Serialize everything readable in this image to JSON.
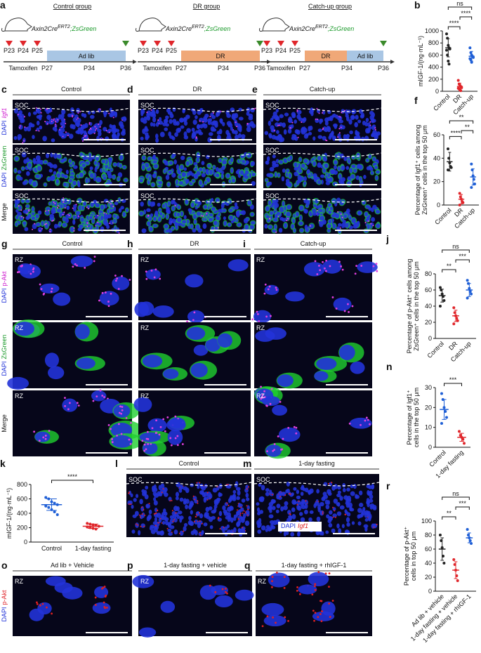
{
  "panel_letters": [
    "a",
    "b",
    "c",
    "d",
    "e",
    "f",
    "g",
    "h",
    "i",
    "j",
    "k",
    "l",
    "m",
    "n",
    "o",
    "p",
    "q",
    "r"
  ],
  "schematic": {
    "genotype": [
      "Axin2Cre",
      "ERT2",
      ";ZsGreen"
    ],
    "days_top": [
      "P23",
      "P24",
      "P25"
    ],
    "tamoxifen": "Tamoxifen",
    "days_bottom": [
      "P27",
      "P34",
      "P36"
    ],
    "groups": [
      {
        "title": "Control group",
        "segments": [
          {
            "label": "Ad lib",
            "color": "#a9c6e4"
          }
        ]
      },
      {
        "title": "DR group",
        "segments": [
          {
            "label": "DR",
            "color": "#f0a878"
          }
        ]
      },
      {
        "title": "Catch-up group",
        "segments": [
          {
            "label": "DR",
            "color": "#f0a878"
          },
          {
            "label": "Ad lib",
            "color": "#a9c6e4"
          }
        ]
      }
    ]
  },
  "images": [
    {
      "titles": [
        "Control",
        "DR",
        "Catch-up"
      ],
      "region": "SOC",
      "rows": [
        [
          "DAPI",
          "Igf1"
        ],
        [
          "DAPI",
          "ZsGreen"
        ],
        [
          "Merge"
        ]
      ]
    },
    {
      "titles": [
        "Control",
        "DR",
        "Catch-up"
      ],
      "region": "RZ",
      "rows": [
        [
          "DAPI",
          "p-Akt"
        ],
        [
          "DAPI",
          "ZsGreen"
        ],
        [
          "Merge"
        ]
      ]
    },
    {
      "titles": [
        "Control",
        "1-day fasting"
      ],
      "region": "SOC",
      "legend": [
        "DAPI",
        "Igf1"
      ],
      "rows": []
    },
    {
      "titles": [
        "Ad lib + Vehicle",
        "1-day fasting + vehicle",
        "1-day fasting + rhIGF-1"
      ],
      "region": "RZ",
      "rows": [
        [
          "DAPI",
          "p-Akt"
        ]
      ]
    }
  ],
  "charts": {
    "b": {
      "type": "scatter",
      "ylabel": [
        "mIGF-1/(ng·mL⁻¹)"
      ],
      "categories": [
        "Control",
        "DR",
        "Catch-up"
      ],
      "colors": [
        "#222222",
        "#e0262b",
        "#1f5fd6"
      ],
      "ylim": [
        0,
        1000
      ],
      "yticks": [
        0,
        200,
        400,
        600,
        800,
        1000
      ],
      "groups": [
        {
          "points": [
            950,
            880,
            760,
            720,
            700,
            680,
            600,
            500,
            450
          ],
          "mean": 720,
          "sd": 150
        },
        {
          "points": [
            180,
            120,
            100,
            80,
            60,
            50,
            40,
            20,
            10
          ],
          "mean": 80,
          "sd": 55
        },
        {
          "points": [
            720,
            640,
            600,
            580,
            560,
            540,
            520,
            480
          ],
          "mean": 580,
          "sd": 80
        }
      ],
      "significance": [
        "ns",
        "****",
        "****"
      ]
    },
    "f": {
      "type": "scatter",
      "ylabel": [
        "Percentage of Igf1⁺ cells among",
        "ZsGreen⁺ cells in the top 50 μm"
      ],
      "categories": [
        "Control",
        "DR",
        "Catch-up"
      ],
      "colors": [
        "#222222",
        "#e0262b",
        "#1f5fd6"
      ],
      "ylim": [
        0,
        60
      ],
      "yticks": [
        0,
        20,
        40,
        60
      ],
      "groups": [
        {
          "points": [
            48,
            40,
            36,
            33,
            32,
            30
          ],
          "mean": 37,
          "sd": 8
        },
        {
          "points": [
            10,
            7,
            5,
            3,
            2,
            0
          ],
          "mean": 5,
          "sd": 4
        },
        {
          "points": [
            35,
            30,
            25,
            22,
            18,
            15
          ],
          "mean": 24,
          "sd": 7
        }
      ],
      "significance": [
        "**",
        "****",
        "**"
      ]
    },
    "j": {
      "type": "scatter",
      "ylabel": [
        "Percentage of p-Akt⁺ cells among",
        "ZsGreen⁺ cells in the top 50 μm"
      ],
      "categories": [
        "Control",
        "DR",
        "Catch-up"
      ],
      "colors": [
        "#222222",
        "#e0262b",
        "#1f5fd6"
      ],
      "ylim": [
        0,
        80
      ],
      "yticks": [
        0,
        20,
        40,
        60,
        80
      ],
      "groups": [
        {
          "points": [
            63,
            60,
            55,
            52,
            47,
            40
          ],
          "mean": 53,
          "sd": 8
        },
        {
          "points": [
            38,
            32,
            28,
            25,
            22,
            18
          ],
          "mean": 28,
          "sd": 7
        },
        {
          "points": [
            72,
            68,
            62,
            58,
            55,
            50
          ],
          "mean": 60,
          "sd": 8
        }
      ],
      "significance": [
        "ns",
        "**",
        "***"
      ]
    },
    "n": {
      "type": "scatter",
      "ylabel": [
        "Percentage of Igf1⁺",
        "cells in the top 50 μm"
      ],
      "categories": [
        "Control",
        "1-day fasting"
      ],
      "colors": [
        "#1f5fd6",
        "#e0262b"
      ],
      "ylim": [
        0,
        30
      ],
      "yticks": [
        0,
        10,
        20,
        30
      ],
      "groups": [
        {
          "points": [
            27,
            24,
            20,
            18,
            15,
            12
          ],
          "mean": 19,
          "sd": 5
        },
        {
          "points": [
            8,
            6,
            5,
            4,
            2
          ],
          "mean": 5,
          "sd": 2
        }
      ],
      "significance": [
        "***"
      ]
    },
    "k": {
      "type": "scatter",
      "ylabel": [
        "mIGF-1/(ng·mL⁻¹)"
      ],
      "categories": [
        "Control",
        "1-day fasting"
      ],
      "colors": [
        "#1f5fd6",
        "#e0262b"
      ],
      "ylim": [
        0,
        800
      ],
      "yticks": [
        0,
        200,
        400,
        600,
        800
      ],
      "groups": [
        {
          "points": [
            620,
            600,
            560,
            540,
            520,
            500,
            480,
            450,
            420,
            380
          ],
          "mean": 520,
          "sd": 80
        },
        {
          "points": [
            260,
            250,
            240,
            230,
            220,
            210,
            200,
            190,
            180
          ],
          "mean": 220,
          "sd": 30
        }
      ],
      "significance": [
        "****"
      ]
    },
    "r": {
      "type": "scatter",
      "ylabel": [
        "Percentage of p-Akt⁺",
        "cells in top 50 μm"
      ],
      "categories": [
        "Ad lib + vehicle",
        "1-day fasting + vehicle",
        "1-day fasting + rhIGF-1"
      ],
      "colors": [
        "#222222",
        "#e0262b",
        "#1f5fd6"
      ],
      "ylim": [
        0,
        100
      ],
      "yticks": [
        0,
        20,
        40,
        60,
        80,
        100
      ],
      "groups": [
        {
          "points": [
            80,
            72,
            62,
            50,
            40
          ],
          "mean": 60,
          "sd": 16
        },
        {
          "points": [
            45,
            38,
            30,
            22,
            15
          ],
          "mean": 30,
          "sd": 12
        },
        {
          "points": [
            88,
            80,
            76,
            72,
            68
          ],
          "mean": 76,
          "sd": 7
        }
      ],
      "significance": [
        "ns",
        "**",
        "***"
      ]
    }
  }
}
